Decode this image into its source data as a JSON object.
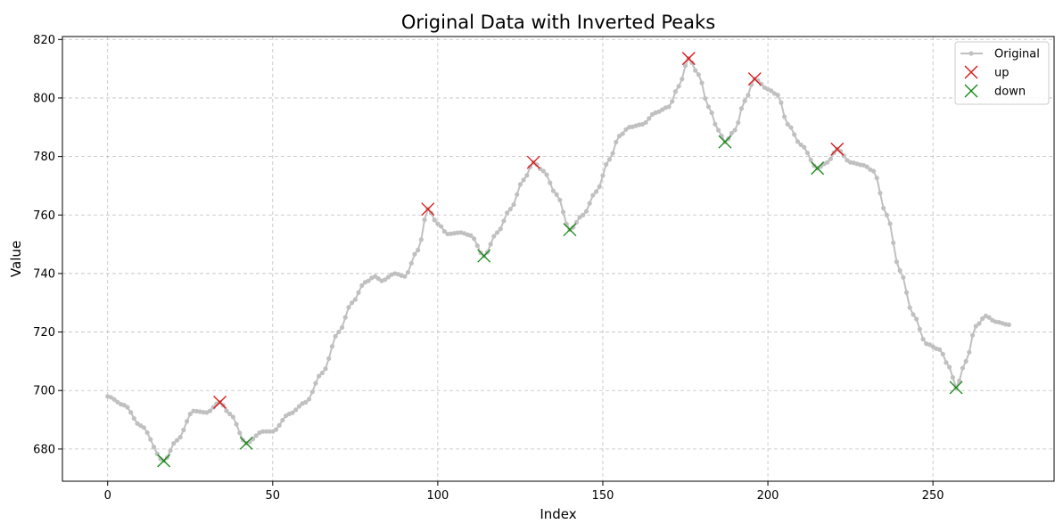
{
  "chart_data": {
    "type": "line",
    "title": "Original Data with Inverted Peaks",
    "xlabel": "Index",
    "ylabel": "Value",
    "xlim": [
      -13.7,
      286.7
    ],
    "ylim": [
      669,
      821
    ],
    "xticks": [
      0,
      50,
      100,
      150,
      200,
      250
    ],
    "yticks": [
      680,
      700,
      720,
      740,
      760,
      780,
      800,
      820
    ],
    "grid": true,
    "legend_position": "top-right",
    "series": [
      {
        "name": "Original",
        "color": "#c0c0c0",
        "marker": "dot",
        "anchors": [
          [
            0,
            698
          ],
          [
            5,
            695
          ],
          [
            10,
            688
          ],
          [
            17,
            676
          ],
          [
            21,
            683
          ],
          [
            26,
            693
          ],
          [
            30,
            692.5
          ],
          [
            34,
            696
          ],
          [
            37,
            692
          ],
          [
            42,
            682
          ],
          [
            47,
            686
          ],
          [
            50,
            686
          ],
          [
            55,
            692
          ],
          [
            60,
            696
          ],
          [
            65,
            706
          ],
          [
            70,
            720
          ],
          [
            74,
            730
          ],
          [
            78,
            737
          ],
          [
            81,
            739
          ],
          [
            83,
            737.5
          ],
          [
            87,
            740
          ],
          [
            90,
            739
          ],
          [
            94,
            748
          ],
          [
            97,
            762
          ],
          [
            100,
            757
          ],
          [
            103,
            753.5
          ],
          [
            107,
            754
          ],
          [
            110,
            753
          ],
          [
            114,
            746
          ],
          [
            118,
            754
          ],
          [
            122,
            762
          ],
          [
            126,
            772
          ],
          [
            129,
            778
          ],
          [
            132,
            775
          ],
          [
            136,
            767
          ],
          [
            140,
            755
          ],
          [
            144,
            760
          ],
          [
            148,
            768
          ],
          [
            152,
            779
          ],
          [
            155,
            787
          ],
          [
            158,
            790
          ],
          [
            162,
            791
          ],
          [
            166,
            795
          ],
          [
            170,
            797
          ],
          [
            173,
            804
          ],
          [
            176,
            813.5
          ],
          [
            179,
            808
          ],
          [
            182,
            797
          ],
          [
            185,
            789
          ],
          [
            187,
            785
          ],
          [
            190,
            789
          ],
          [
            193,
            799
          ],
          [
            196,
            806.5
          ],
          [
            200,
            803
          ],
          [
            203,
            801
          ],
          [
            206,
            791
          ],
          [
            210,
            784
          ],
          [
            215,
            776
          ],
          [
            218,
            778
          ],
          [
            221,
            782.5
          ],
          [
            225,
            778
          ],
          [
            229,
            777
          ],
          [
            232,
            775
          ],
          [
            236,
            760
          ],
          [
            240,
            741
          ],
          [
            244,
            726
          ],
          [
            248,
            716
          ],
          [
            252,
            714
          ],
          [
            255,
            708
          ],
          [
            257,
            701
          ],
          [
            260,
            710
          ],
          [
            263,
            722
          ],
          [
            266,
            725.5
          ],
          [
            269,
            723.5
          ],
          [
            273,
            722.5
          ]
        ]
      },
      {
        "name": "up",
        "color": "#dd1111",
        "marker": "x",
        "points": [
          [
            34,
            696
          ],
          [
            97,
            762
          ],
          [
            129,
            778
          ],
          [
            176,
            813.5
          ],
          [
            196,
            806.5
          ],
          [
            221,
            782.5
          ]
        ]
      },
      {
        "name": "down",
        "color": "#118811",
        "marker": "x",
        "points": [
          [
            17,
            676
          ],
          [
            42,
            682
          ],
          [
            114,
            746
          ],
          [
            140,
            755
          ],
          [
            187,
            785
          ],
          [
            215,
            776
          ],
          [
            257,
            701
          ]
        ]
      }
    ]
  }
}
